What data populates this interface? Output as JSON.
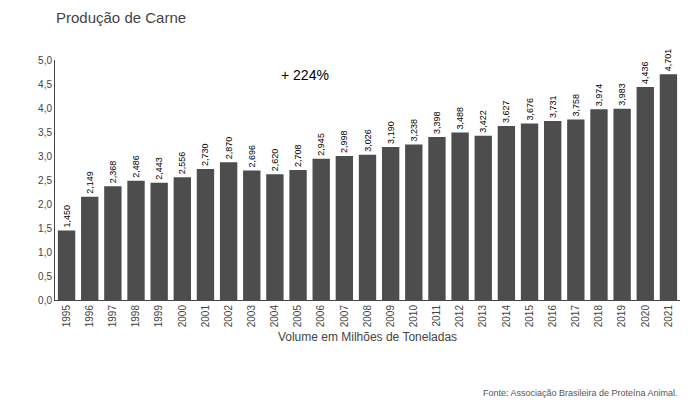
{
  "chart_data": {
    "type": "bar",
    "title": "Produção de Carne",
    "xlabel": "Volume em Milhões de Toneladas",
    "categories": [
      "1995",
      "1996",
      "1997",
      "1998",
      "1999",
      "2000",
      "2001",
      "2002",
      "2003",
      "2004",
      "2005",
      "2006",
      "2007",
      "2008",
      "2009",
      "2010",
      "2011",
      "2012",
      "2013",
      "2014",
      "2015",
      "2016",
      "2017",
      "2018",
      "2019",
      "2020",
      "2021"
    ],
    "values": [
      1.45,
      2.149,
      2.368,
      2.486,
      2.443,
      2.556,
      2.73,
      2.87,
      2.696,
      2.62,
      2.708,
      2.945,
      2.998,
      3.026,
      3.19,
      3.238,
      3.398,
      3.488,
      3.422,
      3.627,
      3.676,
      3.731,
      3.758,
      3.974,
      3.983,
      4.436,
      4.701
    ],
    "value_labels": [
      "1,450",
      "2,149",
      "2,368",
      "2,486",
      "2,443",
      "2,556",
      "2,730",
      "2,870",
      "2,696",
      "2,620",
      "2,708",
      "2,945",
      "2,998",
      "3,026",
      "3,190",
      "3,238",
      "3,398",
      "3,488",
      "3,422",
      "3,627",
      "3,676",
      "3,731",
      "3,758",
      "3,974",
      "3,983",
      "4,436",
      "4,701"
    ],
    "data_labels": true,
    "color": "#4d4d4d",
    "ylim": [
      0,
      5.0
    ],
    "yticks": [
      {
        "value": 0.0,
        "label": "0,0"
      },
      {
        "value": 0.5,
        "label": "0,5"
      },
      {
        "value": 1.0,
        "label": "1,0"
      },
      {
        "value": 1.5,
        "label": "1,5"
      },
      {
        "value": 2.0,
        "label": "2,0"
      },
      {
        "value": 2.5,
        "label": "2,5"
      },
      {
        "value": 3.0,
        "label": "3,0"
      },
      {
        "value": 3.5,
        "label": "3,5"
      },
      {
        "value": 4.0,
        "label": "4,0"
      },
      {
        "value": 4.5,
        "label": "4,5"
      },
      {
        "value": 5.0,
        "label": "5,0"
      }
    ],
    "grid": false,
    "annotations": [
      "+ 224%",
      "Fonte: Associação Brasileira de Proteína Animal."
    ]
  }
}
